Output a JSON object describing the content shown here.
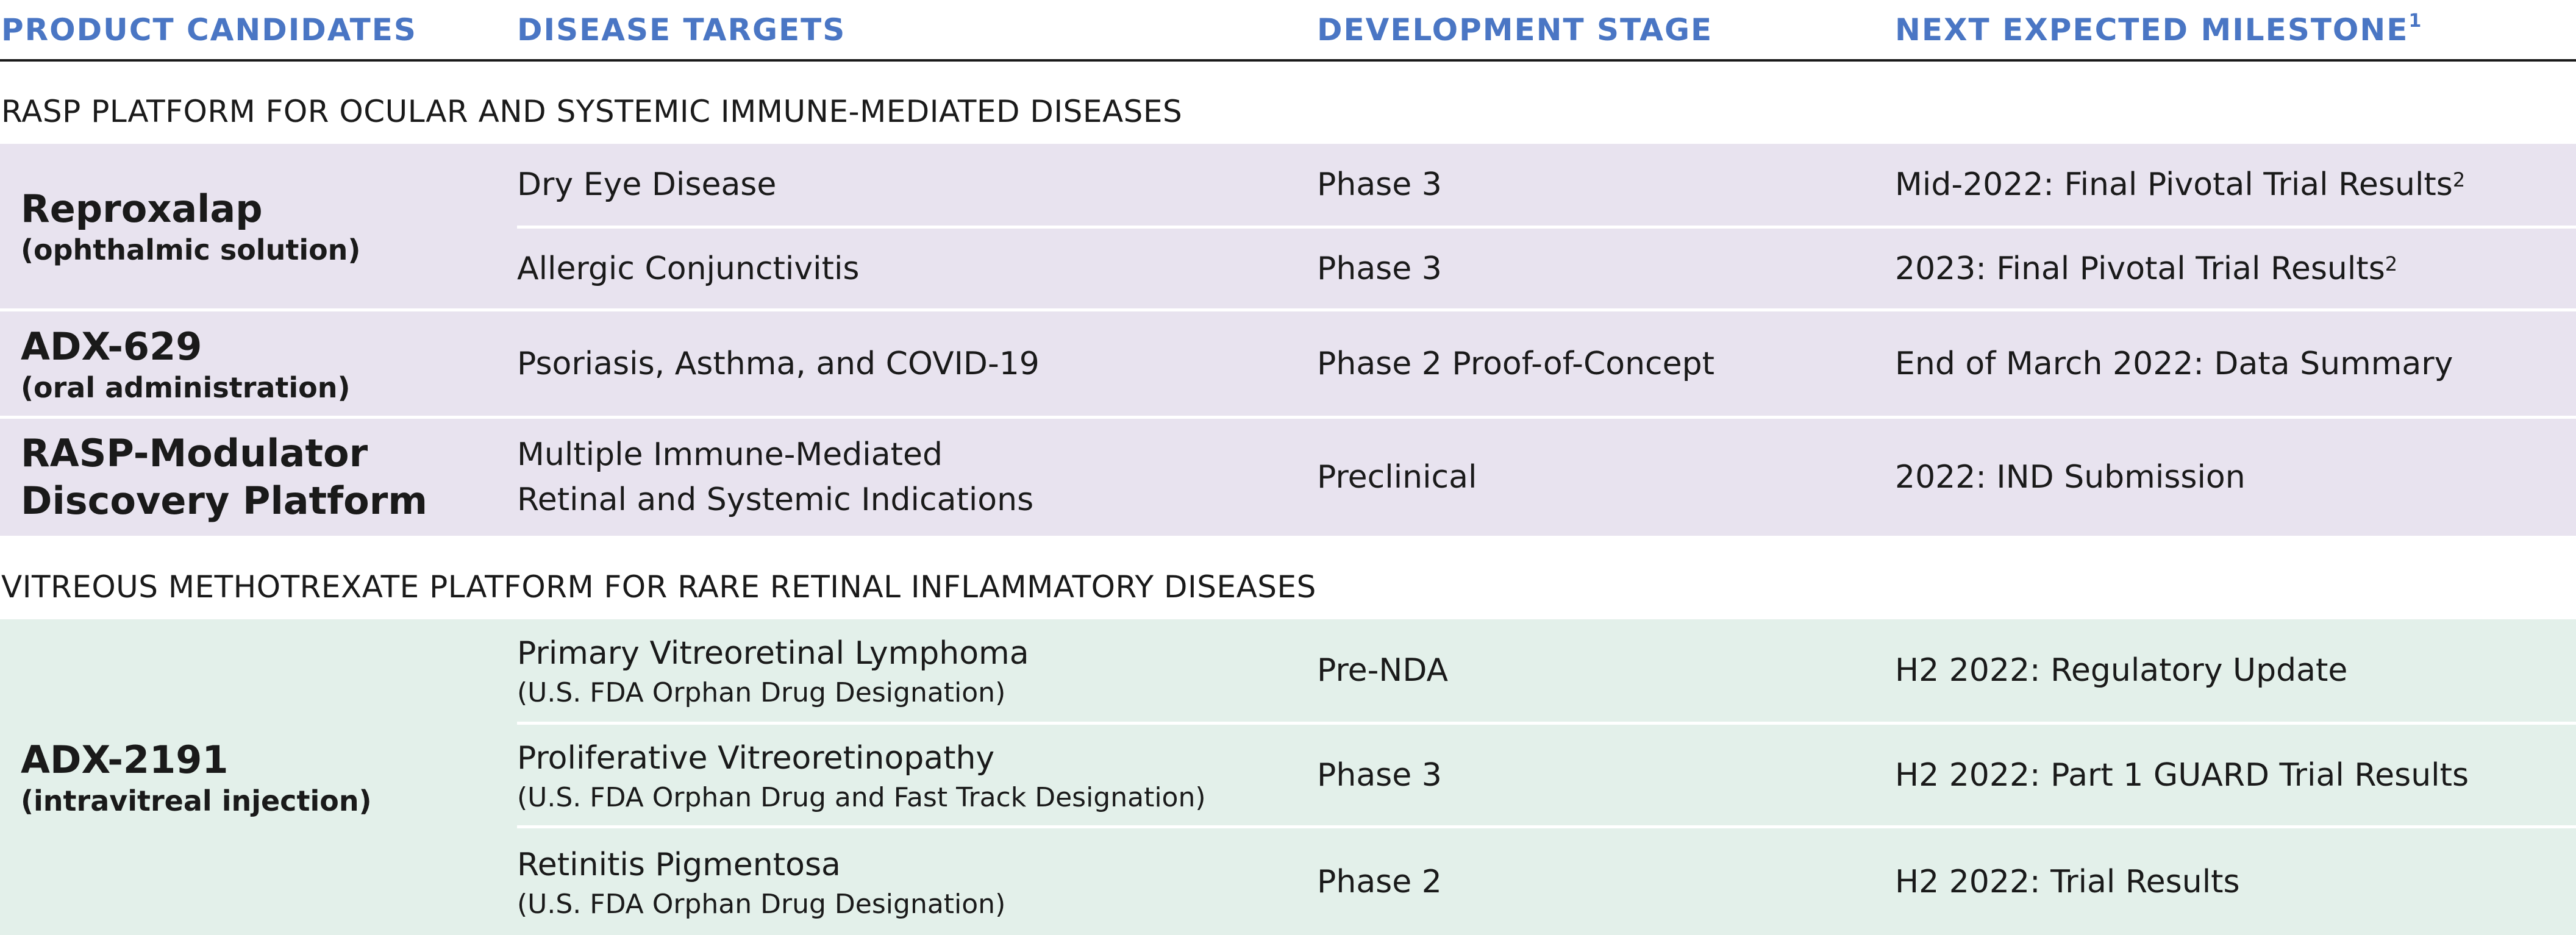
{
  "header": {
    "color": "#4a76c4",
    "col_product": "PRODUCT CANDIDATES",
    "col_disease": "DISEASE TARGETS",
    "col_stage": "DEVELOPMENT STAGE",
    "col_milestone": "NEXT EXPECTED MILESTONE",
    "col_milestone_sup": "1"
  },
  "sections": [
    {
      "title": "RASP PLATFORM FOR OCULAR AND SYSTEMIC IMMUNE-MEDIATED DISEASES",
      "band_color": "#e8e3ef",
      "products": [
        {
          "name": "Reproxalap",
          "sub": "(ophthalmic solution)",
          "rows": [
            {
              "disease": "Dry Eye Disease",
              "disease_sub": "",
              "stage": "Phase 3",
              "milestone": "Mid-2022: Final Pivotal Trial Results",
              "milestone_sup": "2"
            },
            {
              "disease": "Allergic Conjunctivitis",
              "disease_sub": "",
              "stage": "Phase 3",
              "milestone": "2023: Final Pivotal Trial Results",
              "milestone_sup": "2"
            }
          ]
        },
        {
          "name": "ADX-629",
          "sub": "(oral administration)",
          "rows": [
            {
              "disease": "Psoriasis, Asthma, and COVID-19",
              "disease_sub": "",
              "stage": "Phase 2 Proof-of-Concept",
              "milestone": "End of March 2022: Data Summary",
              "milestone_sup": ""
            }
          ]
        },
        {
          "name_line1": "RASP-Modulator",
          "name_line2": "Discovery Platform",
          "rows": [
            {
              "disease": "Multiple Immune-Mediated",
              "disease_line2": "Retinal and Systemic Indications",
              "stage": "Preclinical",
              "milestone": "2022: IND Submission",
              "milestone_sup": ""
            }
          ]
        }
      ]
    },
    {
      "title": "VITREOUS METHOTREXATE PLATFORM FOR RARE RETINAL INFLAMMATORY DISEASES",
      "band_color": "#e3f0ea",
      "products": [
        {
          "name": "ADX-2191",
          "sub": "(intravitreal injection)",
          "rows": [
            {
              "disease": "Primary Vitreoretinal Lymphoma",
              "disease_sub": "(U.S. FDA Orphan Drug Designation)",
              "stage": "Pre-NDA",
              "milestone": "H2 2022: Regulatory Update",
              "milestone_sup": ""
            },
            {
              "disease": "Proliferative Vitreoretinopathy",
              "disease_sub": "(U.S. FDA Orphan Drug and Fast Track Designation)",
              "stage": "Phase 3",
              "milestone": "H2 2022: Part 1 GUARD Trial Results",
              "milestone_sup": ""
            },
            {
              "disease": "Retinitis Pigmentosa",
              "disease_sub": "(U.S. FDA Orphan Drug Designation)",
              "stage": "Phase 2",
              "milestone": "H2 2022: Trial Results",
              "milestone_sup": ""
            }
          ]
        }
      ]
    }
  ]
}
